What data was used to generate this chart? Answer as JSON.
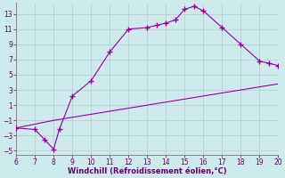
{
  "line1_x": [
    6,
    7,
    7.5,
    8,
    8.3,
    9,
    10,
    11,
    12,
    13,
    13.5,
    14,
    14.5,
    15,
    15.5,
    16,
    17,
    18,
    19,
    19.5,
    20
  ],
  "line1_y": [
    -2,
    -2.2,
    -3.5,
    -4.8,
    -2.2,
    2.2,
    4.2,
    8.0,
    11.0,
    11.2,
    11.5,
    11.8,
    12.2,
    13.6,
    14.0,
    13.4,
    11.2,
    9.0,
    6.8,
    6.5,
    6.2
  ],
  "line2_x": [
    6,
    7,
    8,
    9,
    10,
    11,
    12,
    13,
    14,
    15,
    16,
    17,
    18,
    19,
    20
  ],
  "line2_y": [
    -2.0,
    -1.5,
    -1.0,
    -0.6,
    -0.2,
    0.2,
    0.6,
    1.0,
    1.4,
    1.8,
    2.2,
    2.6,
    3.0,
    3.4,
    3.8
  ],
  "line1_markers_x": [
    6,
    7,
    7.5,
    8,
    8.3,
    9,
    10,
    11,
    12,
    13,
    13.5,
    14,
    14.5,
    15,
    15.5,
    16,
    17,
    18,
    19,
    19.5,
    20
  ],
  "line1_markers_y": [
    -2,
    -2.2,
    -3.5,
    -4.8,
    -2.2,
    2.2,
    4.2,
    8.0,
    11.0,
    11.2,
    11.5,
    11.8,
    12.2,
    13.6,
    14.0,
    13.4,
    11.2,
    9.0,
    6.8,
    6.5,
    6.2
  ],
  "line_color": "#990099",
  "marker": "+",
  "markersize": 4,
  "markeredgewidth": 1.0,
  "linewidth": 0.8,
  "xlim": [
    6,
    20
  ],
  "ylim": [
    -5.5,
    14.5
  ],
  "xticks": [
    6,
    7,
    8,
    9,
    10,
    11,
    12,
    13,
    14,
    15,
    16,
    17,
    18,
    19,
    20
  ],
  "yticks": [
    -5,
    -3,
    -1,
    1,
    3,
    5,
    7,
    9,
    11,
    13
  ],
  "xlabel": "Windchill (Refroidissement éolien,°C)",
  "background_color": "#ceeaec",
  "grid_color": "#b0cdd0",
  "tick_color": "#660066",
  "label_color": "#660066",
  "tick_fontsize": 5.5,
  "xlabel_fontsize": 6.0
}
